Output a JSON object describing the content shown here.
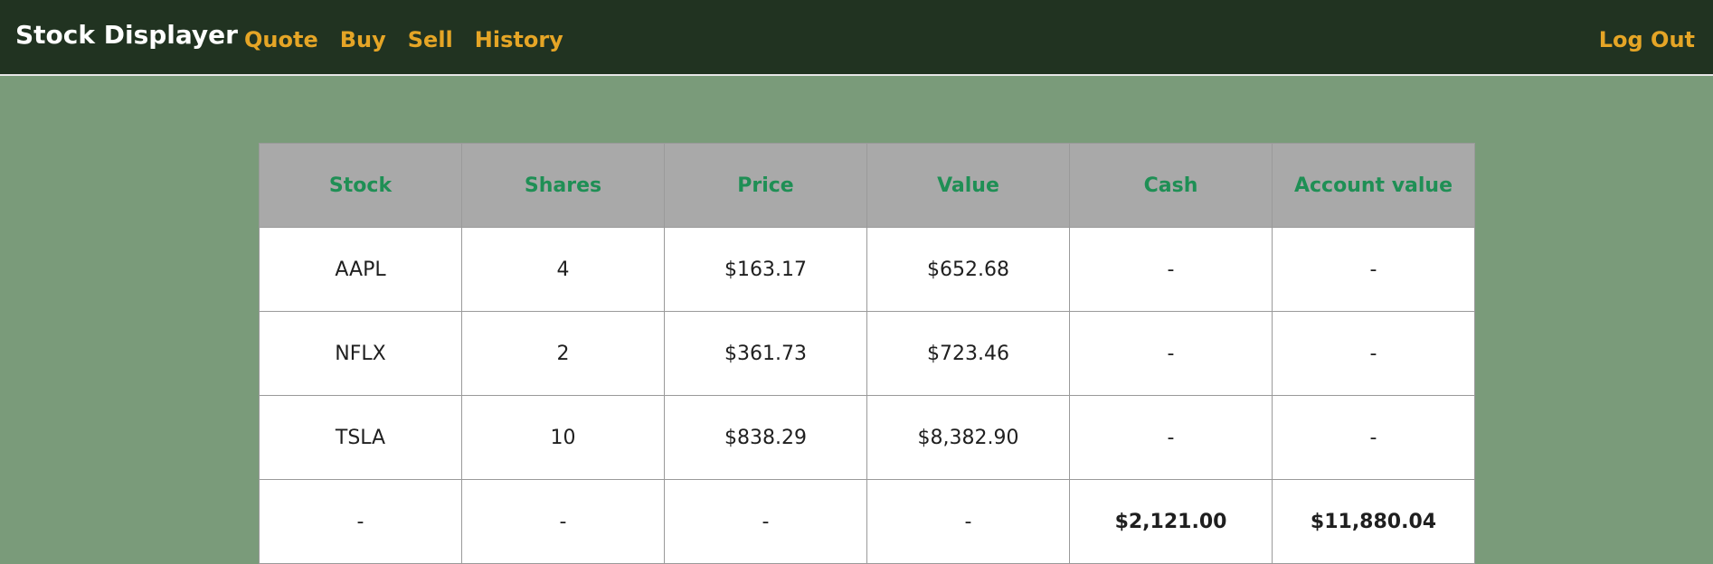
{
  "nav": {
    "brand": "Stock Displayer",
    "links": [
      "Quote",
      "Buy",
      "Sell",
      "History"
    ],
    "logout": "Log Out"
  },
  "table": {
    "headers": [
      "Stock",
      "Shares",
      "Price",
      "Value",
      "Cash",
      "Account value"
    ],
    "rows": [
      [
        "AAPL",
        "4",
        "$163.17",
        "$652.68",
        "-",
        "-"
      ],
      [
        "NFLX",
        "2",
        "$361.73",
        "$723.46",
        "-",
        "-"
      ],
      [
        "TSLA",
        "10",
        "$838.29",
        "$8,382.90",
        "-",
        "-"
      ],
      [
        "-",
        "-",
        "-",
        "-",
        "$2,121.00",
        "$11,880.04"
      ]
    ]
  },
  "colors": {
    "navbar_bg": "#213321",
    "page_bg": "#7a9b7a",
    "link": "#e5a526",
    "header_bg": "#a9a9a9",
    "header_text": "#1f8f55"
  }
}
